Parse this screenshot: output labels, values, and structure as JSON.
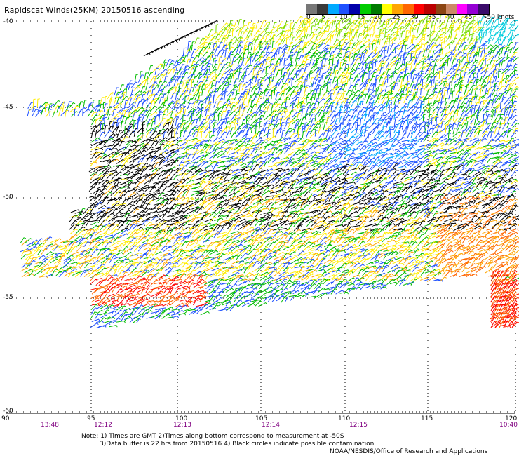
{
  "title": "Rapidscat Winds(25KM) 20150516 ascending",
  "legend": {
    "colors": [
      "#777777",
      "#3a3a3a",
      "#00aaff",
      "#1e50ff",
      "#0000aa",
      "#00cc00",
      "#007a00",
      "#ffff00",
      "#ffa500",
      "#ff6600",
      "#ff0000",
      "#bb0000",
      "#8b4513",
      "#cc8866",
      "#ff00ff",
      "#9400d3",
      "#3a0a6a"
    ],
    "labels": [
      "0",
      "5",
      "10",
      "15",
      "20",
      "25",
      "30",
      "35",
      "40",
      "45",
      ">50 knots"
    ]
  },
  "axes": {
    "lat_labels": [
      "-40",
      "-45",
      "-50",
      "-55",
      "-60"
    ],
    "lon_labels": [
      "90",
      "95",
      "100",
      "105",
      "110",
      "115",
      "120"
    ],
    "time_labels": [
      "13:48",
      "12:12",
      "12:13",
      "12:14",
      "12:15",
      "10:40"
    ]
  },
  "notes": {
    "line1": "Note: 1) Times are GMT 2)Times along bottom correspond to measurement at -50S",
    "line2": "3)Data buffer is 22 hrs from 20150516 4) Black circles indicate possible contamination",
    "credit": "NOAA/NESDIS/Office of Research and Applications"
  }
}
